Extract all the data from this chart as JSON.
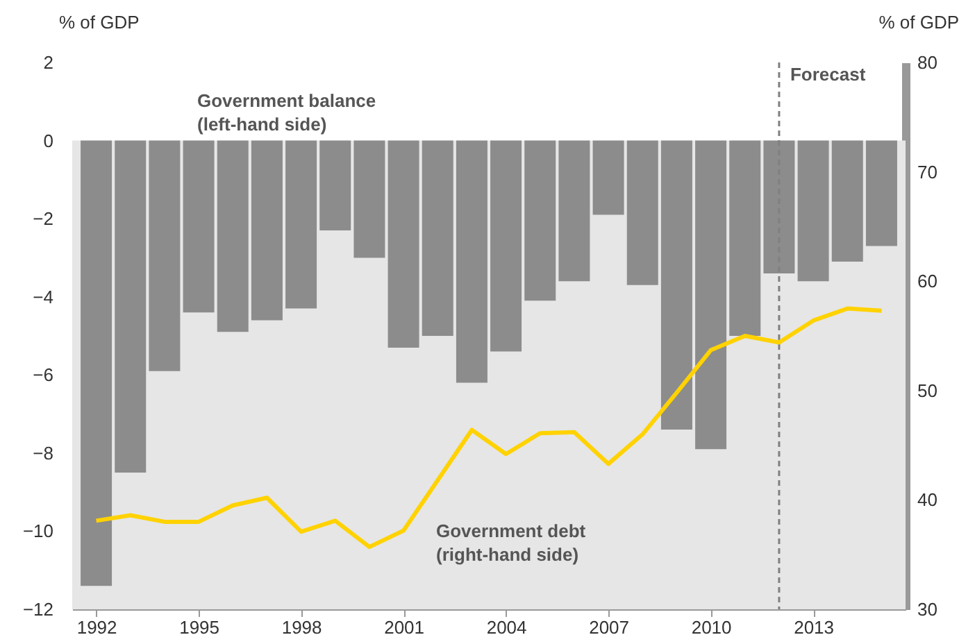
{
  "chart_data": {
    "type": "bar",
    "ylabel": "% of GDP",
    "y2label": "% of GDP",
    "x": [
      1992,
      1993,
      1994,
      1995,
      1996,
      1997,
      1998,
      1999,
      2000,
      2001,
      2002,
      2003,
      2004,
      2005,
      2006,
      2007,
      2008,
      2009,
      2010,
      2011,
      2012,
      2013,
      2014,
      2015
    ],
    "xlim": [
      1991.5,
      2015.5
    ],
    "xticks": [
      1992,
      1995,
      1998,
      2001,
      2004,
      2007,
      2010,
      2013
    ],
    "ylim": [
      -12,
      2
    ],
    "yticks": [
      -12,
      -10,
      -8,
      -6,
      -4,
      -2,
      0,
      2
    ],
    "y2lim": [
      30,
      80
    ],
    "y2ticks": [
      30,
      40,
      50,
      60,
      70,
      80
    ],
    "series": [
      {
        "name": "Government balance\n(left-hand side)",
        "color": "#8c8c8c",
        "values": [
          -11.4,
          -8.5,
          -5.9,
          -4.4,
          -4.9,
          -4.6,
          -4.3,
          -2.3,
          -3.0,
          -5.3,
          -5.0,
          -6.2,
          -5.4,
          -4.1,
          -3.6,
          -1.9,
          -3.7,
          -7.4,
          -7.9,
          -5.0,
          -3.4,
          -3.6,
          -3.1,
          -2.7
        ]
      },
      {
        "name": "Government debt\n(right-hand side)",
        "type": "line",
        "axis": "y2",
        "color": "#ffd200",
        "values": [
          38.1,
          38.6,
          38.0,
          38.0,
          39.5,
          40.2,
          37.1,
          38.1,
          35.7,
          37.2,
          41.8,
          46.4,
          44.2,
          46.1,
          46.2,
          43.3,
          46.0,
          49.8,
          53.7,
          55.0,
          54.4,
          56.4,
          57.5,
          57.3
        ]
      }
    ],
    "ref_lines": [
      {
        "axis": "x",
        "value": 2012,
        "label": "Forecast",
        "color": "#808080",
        "line_style": "dashed"
      }
    ],
    "bands": [
      {
        "axis": "y",
        "from": 0,
        "to": -12,
        "color": "#e6e6e6"
      }
    ],
    "grid": false
  }
}
